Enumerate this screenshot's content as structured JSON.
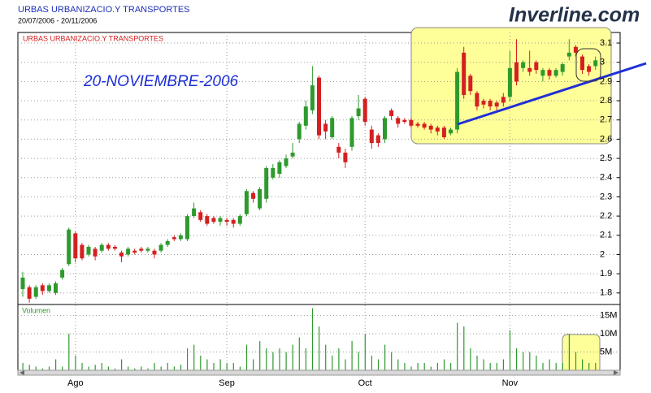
{
  "chart_data": {
    "type": "candlestick",
    "title": "URBAS URBANIZACIO.Y TRANSPORTES",
    "subtitle": "20/07/2006 - 20/11/2006",
    "chart_label": "URBAS URBANIZACIO.Y TRANSPORTES",
    "annotation": "20-NOVIEMBRE-2006",
    "volume_label": "Volumen",
    "logo": "Inverline.com",
    "up_color": "#2e9a2e",
    "down_color": "#d42020",
    "volume_color": "#2e9a2e",
    "grid": true,
    "categories": [
      null,
      null,
      null,
      null,
      null,
      null,
      null,
      null,
      "Ago",
      null,
      null,
      null,
      null,
      null,
      null,
      null,
      null,
      null,
      null,
      null,
      null,
      null,
      null,
      null,
      null,
      null,
      null,
      null,
      null,
      null,
      null,
      "Sep",
      null,
      null,
      null,
      null,
      null,
      null,
      null,
      null,
      null,
      null,
      null,
      null,
      null,
      null,
      null,
      null,
      null,
      null,
      null,
      null,
      "Oct",
      null,
      null,
      null,
      null,
      null,
      null,
      null,
      null,
      null,
      null,
      null,
      null,
      null,
      null,
      null,
      null,
      null,
      null,
      null,
      null,
      null,
      "Nov",
      null,
      null,
      null,
      null,
      null,
      null,
      null,
      null,
      null,
      null,
      null,
      null,
      null
    ],
    "open": [
      1.82,
      1.83,
      1.78,
      1.84,
      1.81,
      1.8,
      1.88,
      1.95,
      2.11,
      2.05,
      2.0,
      2.03,
      2.02,
      2.05,
      2.04,
      2.01,
      2.0,
      2.02,
      2.03,
      2.02,
      2.02,
      2.02,
      2.05,
      2.09,
      2.08,
      2.08,
      2.2,
      2.22,
      2.2,
      2.19,
      2.17,
      2.18,
      2.18,
      2.16,
      2.21,
      2.32,
      2.24,
      2.29,
      2.4,
      2.42,
      2.46,
      2.51,
      2.6,
      2.67,
      2.75,
      2.92,
      2.68,
      2.61,
      2.56,
      2.53,
      2.56,
      2.72,
      2.81,
      2.65,
      2.62,
      2.6,
      2.75,
      2.71,
      2.7,
      2.7,
      2.68,
      2.68,
      2.67,
      2.66,
      2.66,
      2.63,
      2.65,
      3.05,
      2.93,
      2.84,
      2.8,
      2.8,
      2.79,
      2.82,
      2.82,
      3.0,
      2.97,
      2.97,
      3.0,
      2.93,
      2.96,
      2.93,
      2.95,
      3.03,
      3.08,
      3.03,
      2.98,
      2.98
    ],
    "high": [
      1.91,
      1.84,
      1.84,
      1.85,
      1.85,
      1.86,
      1.93,
      2.14,
      2.12,
      2.06,
      2.05,
      2.04,
      2.06,
      2.06,
      2.05,
      2.02,
      2.04,
      2.03,
      2.04,
      2.04,
      2.03,
      2.06,
      2.08,
      2.1,
      2.11,
      2.21,
      2.27,
      2.23,
      2.21,
      2.2,
      2.2,
      2.19,
      2.19,
      2.21,
      2.34,
      2.33,
      2.35,
      2.46,
      2.47,
      2.49,
      2.52,
      2.58,
      2.69,
      2.8,
      2.98,
      2.93,
      2.7,
      2.72,
      2.58,
      2.55,
      2.72,
      2.83,
      2.82,
      2.67,
      2.63,
      2.72,
      2.76,
      2.72,
      2.71,
      2.71,
      2.69,
      2.69,
      2.68,
      2.67,
      2.67,
      2.66,
      2.97,
      3.08,
      2.94,
      2.85,
      2.81,
      2.81,
      2.8,
      2.84,
      3.06,
      3.12,
      3.01,
      3.06,
      3.01,
      2.97,
      2.97,
      2.97,
      3.0,
      3.12,
      3.09,
      3.04,
      2.99,
      3.03
    ],
    "low": [
      1.78,
      1.75,
      1.77,
      1.79,
      1.8,
      1.79,
      1.87,
      1.94,
      1.96,
      1.97,
      1.99,
      1.97,
      2.01,
      2.02,
      2.02,
      1.96,
      1.99,
      2.0,
      2.01,
      2.01,
      1.98,
      2.01,
      2.04,
      2.07,
      2.07,
      2.07,
      2.19,
      2.17,
      2.15,
      2.16,
      2.15,
      2.15,
      2.14,
      2.15,
      2.2,
      2.27,
      2.23,
      2.27,
      2.39,
      2.4,
      2.45,
      2.5,
      2.58,
      2.65,
      2.73,
      2.6,
      2.6,
      2.6,
      2.5,
      2.45,
      2.54,
      2.7,
      2.67,
      2.55,
      2.56,
      2.58,
      2.7,
      2.66,
      2.68,
      2.66,
      2.66,
      2.65,
      2.63,
      2.62,
      2.6,
      2.62,
      2.63,
      2.81,
      2.83,
      2.75,
      2.76,
      2.75,
      2.75,
      2.77,
      2.8,
      2.88,
      2.95,
      2.93,
      2.94,
      2.9,
      2.91,
      2.92,
      2.93,
      3.01,
      3.03,
      2.94,
      2.93,
      2.96
    ],
    "close": [
      1.88,
      1.77,
      1.83,
      1.81,
      1.84,
      1.85,
      1.92,
      2.13,
      1.98,
      1.98,
      2.04,
      1.99,
      2.05,
      2.03,
      2.03,
      1.99,
      2.03,
      2.01,
      2.02,
      2.03,
      2.0,
      2.05,
      2.07,
      2.08,
      2.1,
      2.2,
      2.24,
      2.18,
      2.16,
      2.17,
      2.19,
      2.17,
      2.16,
      2.2,
      2.33,
      2.29,
      2.34,
      2.45,
      2.45,
      2.48,
      2.5,
      2.53,
      2.68,
      2.77,
      2.88,
      2.62,
      2.64,
      2.71,
      2.53,
      2.48,
      2.71,
      2.76,
      2.69,
      2.58,
      2.58,
      2.71,
      2.72,
      2.68,
      2.69,
      2.67,
      2.67,
      2.66,
      2.65,
      2.64,
      2.61,
      2.65,
      2.95,
      2.83,
      2.85,
      2.77,
      2.78,
      2.77,
      2.77,
      2.79,
      2.97,
      2.9,
      3.0,
      2.95,
      2.96,
      2.96,
      2.93,
      2.96,
      2.99,
      3.05,
      3.05,
      2.96,
      2.95,
      3.01
    ],
    "volume": [
      2000000,
      1500000,
      1000000,
      500000,
      1000000,
      3000000,
      1000000,
      10000000,
      4000000,
      2000000,
      1000000,
      1500000,
      2000000,
      1000000,
      500000,
      3000000,
      1000000,
      500000,
      1000000,
      500000,
      2000000,
      1000000,
      2000000,
      1000000,
      1500000,
      6000000,
      7000000,
      4000000,
      3000000,
      2000000,
      3000000,
      2000000,
      2000000,
      1000000,
      7000000,
      3000000,
      8000000,
      6000000,
      5000000,
      6000000,
      5000000,
      7000000,
      9000000,
      6000000,
      17000000,
      12000000,
      7000000,
      4000000,
      6000000,
      3000000,
      8000000,
      5000000,
      10000000,
      4000000,
      3000000,
      7000000,
      5000000,
      3000000,
      2000000,
      1000000,
      2000000,
      2000000,
      1000000,
      2000000,
      3000000,
      2000000,
      13000000,
      12000000,
      6000000,
      4000000,
      3000000,
      2000000,
      2000000,
      3000000,
      11000000,
      6000000,
      5000000,
      5000000,
      4000000,
      2000000,
      3000000,
      2000000,
      2000000,
      10000000,
      5000000,
      3000000,
      2000000,
      2000000
    ],
    "ylim": [
      1.74,
      3.155
    ],
    "yticks": [
      1.8,
      1.9,
      2,
      2.1,
      2.2,
      2.3,
      2.4,
      2.5,
      2.6,
      2.7,
      2.8,
      2.9,
      3,
      3.1
    ],
    "volume_ylim": [
      0,
      17800000
    ],
    "volume_yticks": [
      {
        "value": 5000000,
        "label": "5M"
      },
      {
        "value": 10000000,
        "label": "10M"
      },
      {
        "value": 15000000,
        "label": "15M"
      }
    ]
  }
}
